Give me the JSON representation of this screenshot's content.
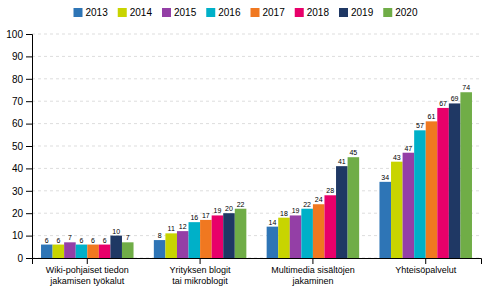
{
  "chart_data": {
    "type": "bar",
    "categories": [
      "Wiki-pohjaiset tiedon\njakamisen työkalut",
      "Yrityksen blogit\ntai mikroblogit",
      "Multimedia sisältöjen\njakaminen",
      "Yhteisöpalvelut"
    ],
    "series": [
      {
        "name": "2013",
        "color": "#2e75b6",
        "values": [
          6,
          8,
          14,
          34
        ]
      },
      {
        "name": "2014",
        "color": "#c8d400",
        "values": [
          6,
          11,
          18,
          43
        ]
      },
      {
        "name": "2015",
        "color": "#943fa6",
        "values": [
          7,
          12,
          19,
          47
        ]
      },
      {
        "name": "2016",
        "color": "#00b0c8",
        "values": [
          6,
          16,
          22,
          57
        ]
      },
      {
        "name": "2017",
        "color": "#f07820",
        "values": [
          6,
          17,
          24,
          61
        ]
      },
      {
        "name": "2018",
        "color": "#e8006a",
        "values": [
          6,
          19,
          28,
          67
        ]
      },
      {
        "name": "2019",
        "color": "#1f3864",
        "values": [
          10,
          20,
          41,
          69
        ]
      },
      {
        "name": "2020",
        "color": "#70ad47",
        "values": [
          7,
          22,
          45,
          74
        ]
      }
    ],
    "ylim": [
      0,
      100
    ],
    "yticks": [
      0,
      10,
      20,
      30,
      40,
      50,
      60,
      70,
      80,
      90,
      100
    ],
    "grid": true,
    "legend": "top",
    "data_labels": true
  }
}
